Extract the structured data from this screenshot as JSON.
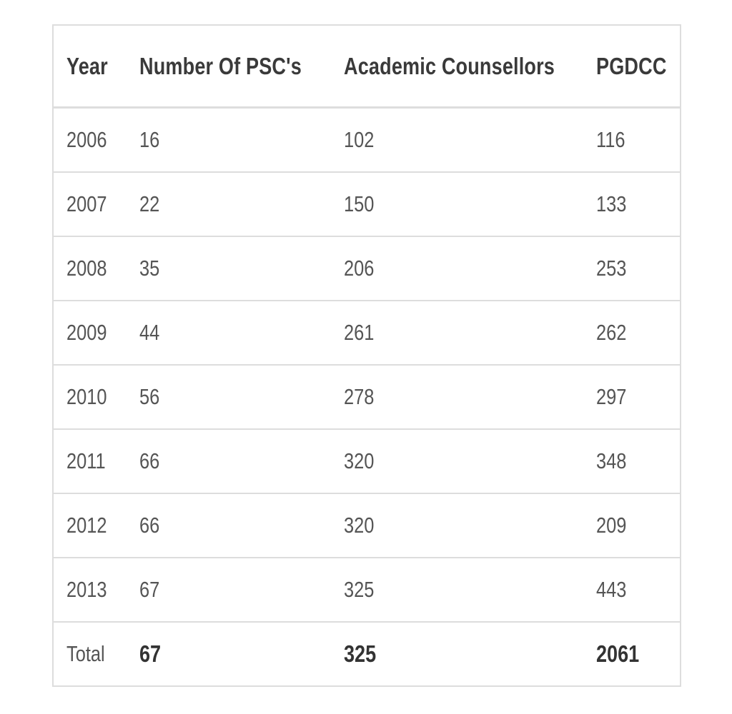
{
  "table": {
    "headers": [
      "Year",
      "Number Of PSC's",
      "Academic Counsellors",
      "PGDCC"
    ],
    "rows": [
      [
        "2006",
        "16",
        "102",
        "116"
      ],
      [
        "2007",
        "22",
        "150",
        "133"
      ],
      [
        "2008",
        "35",
        "206",
        "253"
      ],
      [
        "2009",
        "44",
        "261",
        "262"
      ],
      [
        "2010",
        "56",
        "278",
        "297"
      ],
      [
        "2011",
        "66",
        "320",
        "348"
      ],
      [
        "2012",
        "66",
        "320",
        "209"
      ],
      [
        "2013",
        "67",
        "325",
        "443"
      ]
    ],
    "footer": [
      "Total",
      "67",
      "325",
      "2061"
    ]
  }
}
